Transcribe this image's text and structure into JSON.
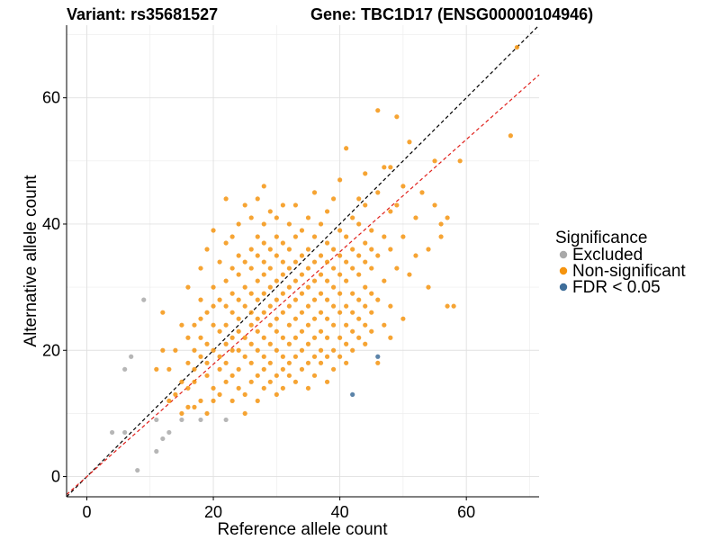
{
  "chart_data": {
    "type": "scatter",
    "title_left": "Variant: rs35681527",
    "title_right": "Gene: TBC1D17 (ENSG00000104946)",
    "xlabel": "Reference allele count",
    "ylabel": "Alternative allele count",
    "xlim": [
      -3.2,
      71.5
    ],
    "ylim": [
      -3.2,
      71.5
    ],
    "xticks": [
      0,
      20,
      40,
      60
    ],
    "yticks": [
      0,
      20,
      40,
      60
    ],
    "grid": true,
    "legend": {
      "title": "Significance",
      "position": "right",
      "entries": [
        {
          "label": "Excluded",
          "color": "#A9A9A9"
        },
        {
          "label": "Non-significant",
          "color": "#F5940F"
        },
        {
          "label": "FDR < 0.05",
          "color": "#3F6E9A"
        }
      ]
    },
    "reference_lines": [
      {
        "description": "y = x",
        "slope": 1.0,
        "intercept": 0,
        "color": "#000000",
        "dash": true
      },
      {
        "description": "fit",
        "slope": 0.89,
        "intercept": 0,
        "color": "#E0201B",
        "dash": true
      }
    ],
    "series": [
      {
        "name": "Excluded",
        "color": "#A9A9A9",
        "points": [
          [
            4,
            7
          ],
          [
            6,
            7
          ],
          [
            6,
            17
          ],
          [
            7,
            19
          ],
          [
            8,
            1
          ],
          [
            9,
            28
          ],
          [
            11,
            4
          ],
          [
            11,
            9
          ],
          [
            12,
            6
          ],
          [
            13,
            7
          ],
          [
            15,
            9
          ],
          [
            18,
            9
          ],
          [
            22,
            9
          ]
        ]
      },
      {
        "name": "FDR < 0.05",
        "color": "#3F6E9A",
        "points": [
          [
            42,
            13
          ],
          [
            46,
            19
          ]
        ]
      },
      {
        "name": "Non-significant",
        "color": "#F5940F",
        "points": [
          [
            11,
            17
          ],
          [
            12,
            20
          ],
          [
            12,
            26
          ],
          [
            13,
            12
          ],
          [
            13,
            17
          ],
          [
            14,
            13
          ],
          [
            14,
            20
          ],
          [
            15,
            10
          ],
          [
            15,
            15
          ],
          [
            15,
            24
          ],
          [
            16,
            11
          ],
          [
            16,
            14
          ],
          [
            16,
            18
          ],
          [
            16,
            22
          ],
          [
            16,
            30
          ],
          [
            17,
            11
          ],
          [
            17,
            15
          ],
          [
            17,
            17
          ],
          [
            17,
            20
          ],
          [
            17,
            24
          ],
          [
            18,
            12
          ],
          [
            18,
            19
          ],
          [
            18,
            22
          ],
          [
            18,
            25
          ],
          [
            18,
            28
          ],
          [
            18,
            33
          ],
          [
            19,
            10
          ],
          [
            19,
            16
          ],
          [
            19,
            18
          ],
          [
            19,
            21
          ],
          [
            19,
            26
          ],
          [
            19,
            36
          ],
          [
            20,
            12
          ],
          [
            20,
            14
          ],
          [
            20,
            20
          ],
          [
            20,
            24
          ],
          [
            20,
            27
          ],
          [
            20,
            30
          ],
          [
            20,
            39
          ],
          [
            21,
            13
          ],
          [
            21,
            17
          ],
          [
            21,
            19
          ],
          [
            21,
            23
          ],
          [
            21,
            28
          ],
          [
            21,
            34
          ],
          [
            22,
            15
          ],
          [
            22,
            18
          ],
          [
            22,
            21
          ],
          [
            22,
            24
          ],
          [
            22,
            27
          ],
          [
            22,
            31
          ],
          [
            22,
            37
          ],
          [
            22,
            44
          ],
          [
            23,
            12
          ],
          [
            23,
            16
          ],
          [
            23,
            20
          ],
          [
            23,
            22
          ],
          [
            23,
            26
          ],
          [
            23,
            29
          ],
          [
            23,
            33
          ],
          [
            23,
            38
          ],
          [
            24,
            14
          ],
          [
            24,
            17
          ],
          [
            24,
            20
          ],
          [
            24,
            23
          ],
          [
            24,
            25
          ],
          [
            24,
            28
          ],
          [
            24,
            32
          ],
          [
            24,
            35
          ],
          [
            24,
            40
          ],
          [
            25,
            10
          ],
          [
            25,
            13
          ],
          [
            25,
            19
          ],
          [
            25,
            22
          ],
          [
            25,
            27
          ],
          [
            25,
            30
          ],
          [
            25,
            34
          ],
          [
            25,
            43
          ],
          [
            26,
            15
          ],
          [
            26,
            18
          ],
          [
            26,
            21
          ],
          [
            26,
            24
          ],
          [
            26,
            26
          ],
          [
            26,
            29
          ],
          [
            26,
            33
          ],
          [
            26,
            36
          ],
          [
            26,
            41
          ],
          [
            27,
            12
          ],
          [
            27,
            16
          ],
          [
            27,
            20
          ],
          [
            27,
            23
          ],
          [
            27,
            25
          ],
          [
            27,
            28
          ],
          [
            27,
            31
          ],
          [
            27,
            35
          ],
          [
            27,
            38
          ],
          [
            27,
            44
          ],
          [
            28,
            14
          ],
          [
            28,
            17
          ],
          [
            28,
            19
          ],
          [
            28,
            22
          ],
          [
            28,
            26
          ],
          [
            28,
            29
          ],
          [
            28,
            32
          ],
          [
            28,
            34
          ],
          [
            28,
            37
          ],
          [
            28,
            40
          ],
          [
            28,
            46
          ],
          [
            29,
            15
          ],
          [
            29,
            18
          ],
          [
            29,
            21
          ],
          [
            29,
            24
          ],
          [
            29,
            27
          ],
          [
            29,
            30
          ],
          [
            29,
            33
          ],
          [
            29,
            36
          ],
          [
            29,
            42
          ],
          [
            30,
            13
          ],
          [
            30,
            16
          ],
          [
            30,
            20
          ],
          [
            30,
            23
          ],
          [
            30,
            25
          ],
          [
            30,
            28
          ],
          [
            30,
            31
          ],
          [
            30,
            35
          ],
          [
            30,
            38
          ],
          [
            30,
            41
          ],
          [
            31,
            14
          ],
          [
            31,
            17
          ],
          [
            31,
            19
          ],
          [
            31,
            22
          ],
          [
            31,
            26
          ],
          [
            31,
            29
          ],
          [
            31,
            32
          ],
          [
            31,
            34
          ],
          [
            31,
            37
          ],
          [
            31,
            43
          ],
          [
            32,
            16
          ],
          [
            32,
            18
          ],
          [
            32,
            21
          ],
          [
            32,
            24
          ],
          [
            32,
            27
          ],
          [
            32,
            30
          ],
          [
            32,
            33
          ],
          [
            32,
            36
          ],
          [
            32,
            40
          ],
          [
            33,
            15
          ],
          [
            33,
            19
          ],
          [
            33,
            22
          ],
          [
            33,
            25
          ],
          [
            33,
            28
          ],
          [
            33,
            31
          ],
          [
            33,
            34
          ],
          [
            33,
            38
          ],
          [
            33,
            43
          ],
          [
            34,
            17
          ],
          [
            34,
            20
          ],
          [
            34,
            23
          ],
          [
            34,
            26
          ],
          [
            34,
            29
          ],
          [
            34,
            32
          ],
          [
            34,
            35
          ],
          [
            34,
            39
          ],
          [
            35,
            14
          ],
          [
            35,
            18
          ],
          [
            35,
            21
          ],
          [
            35,
            24
          ],
          [
            35,
            27
          ],
          [
            35,
            30
          ],
          [
            35,
            33
          ],
          [
            35,
            36
          ],
          [
            35,
            41
          ],
          [
            36,
            16
          ],
          [
            36,
            19
          ],
          [
            36,
            22
          ],
          [
            36,
            25
          ],
          [
            36,
            28
          ],
          [
            36,
            31
          ],
          [
            36,
            34
          ],
          [
            36,
            38
          ],
          [
            36,
            45
          ],
          [
            37,
            18
          ],
          [
            37,
            20
          ],
          [
            37,
            23
          ],
          [
            37,
            26
          ],
          [
            37,
            29
          ],
          [
            37,
            32
          ],
          [
            37,
            35
          ],
          [
            37,
            40
          ],
          [
            38,
            15
          ],
          [
            38,
            19
          ],
          [
            38,
            22
          ],
          [
            38,
            25
          ],
          [
            38,
            28
          ],
          [
            38,
            31
          ],
          [
            38,
            34
          ],
          [
            38,
            37
          ],
          [
            38,
            42
          ],
          [
            39,
            17
          ],
          [
            39,
            20
          ],
          [
            39,
            24
          ],
          [
            39,
            27
          ],
          [
            39,
            30
          ],
          [
            39,
            33
          ],
          [
            39,
            36
          ],
          [
            39,
            44
          ],
          [
            40,
            19
          ],
          [
            40,
            22
          ],
          [
            40,
            26
          ],
          [
            40,
            29
          ],
          [
            40,
            32
          ],
          [
            40,
            35
          ],
          [
            40,
            39
          ],
          [
            40,
            47
          ],
          [
            41,
            18
          ],
          [
            41,
            21
          ],
          [
            41,
            24
          ],
          [
            41,
            27
          ],
          [
            41,
            31
          ],
          [
            41,
            34
          ],
          [
            41,
            38
          ],
          [
            41,
            52
          ],
          [
            42,
            20
          ],
          [
            42,
            23
          ],
          [
            42,
            26
          ],
          [
            42,
            29
          ],
          [
            42,
            33
          ],
          [
            42,
            36
          ],
          [
            42,
            41
          ],
          [
            43,
            22
          ],
          [
            43,
            25
          ],
          [
            43,
            28
          ],
          [
            43,
            32
          ],
          [
            43,
            35
          ],
          [
            43,
            40
          ],
          [
            43,
            44
          ],
          [
            44,
            21
          ],
          [
            44,
            24
          ],
          [
            44,
            27
          ],
          [
            44,
            30
          ],
          [
            44,
            34
          ],
          [
            44,
            37
          ],
          [
            44,
            43
          ],
          [
            44,
            48
          ],
          [
            45,
            23
          ],
          [
            45,
            26
          ],
          [
            45,
            29
          ],
          [
            45,
            33
          ],
          [
            45,
            36
          ],
          [
            45,
            39
          ],
          [
            46,
            18
          ],
          [
            46,
            28
          ],
          [
            46,
            35
          ],
          [
            46,
            45
          ],
          [
            46,
            58
          ],
          [
            47,
            24
          ],
          [
            47,
            31
          ],
          [
            47,
            38
          ],
          [
            47,
            49
          ],
          [
            48,
            22
          ],
          [
            48,
            27
          ],
          [
            48,
            36
          ],
          [
            48,
            42
          ],
          [
            48,
            49
          ],
          [
            49,
            33
          ],
          [
            49,
            43
          ],
          [
            49,
            57
          ],
          [
            50,
            25
          ],
          [
            50,
            38
          ],
          [
            50,
            46
          ],
          [
            51,
            32
          ],
          [
            51,
            53
          ],
          [
            52,
            35
          ],
          [
            52,
            41
          ],
          [
            53,
            45
          ],
          [
            54,
            30
          ],
          [
            54,
            36
          ],
          [
            55,
            43
          ],
          [
            55,
            50
          ],
          [
            56,
            38
          ],
          [
            56,
            40
          ],
          [
            57,
            41
          ],
          [
            57,
            27
          ],
          [
            58,
            27
          ],
          [
            59,
            50
          ],
          [
            67,
            54
          ],
          [
            68,
            68
          ]
        ]
      }
    ]
  }
}
